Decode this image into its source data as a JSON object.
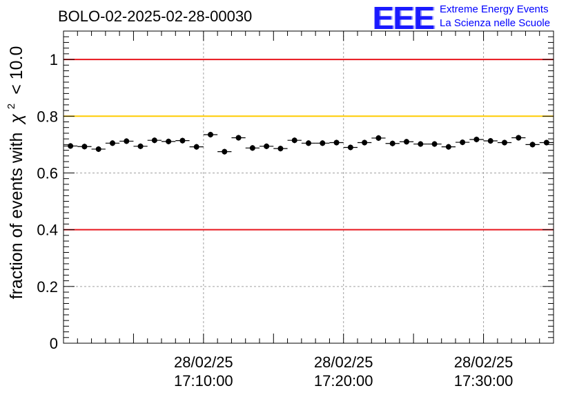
{
  "chart_data": {
    "type": "scatter",
    "title": "BOLO-02-2025-02-28-00030",
    "xlabel": "",
    "ylabel": "fraction of events with",
    "ylabel_symbol": "χ",
    "ylabel_exponent": "2",
    "ylabel_suffix": "< 10.0",
    "ylim": [
      0,
      1.1
    ],
    "yticks": [
      0,
      0.2,
      0.4,
      0.6,
      0.8,
      1.0
    ],
    "ytick_labels": [
      "0",
      "0.2",
      "0.4",
      "0.6",
      "0.8",
      "1"
    ],
    "xlim_minutes": [
      0,
      35
    ],
    "xtick_minutes": [
      10,
      20,
      30
    ],
    "xtick_labels": [
      {
        "date": "28/02/25",
        "time": "17:10:00"
      },
      {
        "date": "28/02/25",
        "time": "17:20:00"
      },
      {
        "date": "28/02/25",
        "time": "17:30:00"
      }
    ],
    "reference_lines": [
      {
        "y": 1.0,
        "color": "#e8141c"
      },
      {
        "y": 0.8,
        "color": "#ffcc00"
      },
      {
        "y": 0.4,
        "color": "#e8141c"
      }
    ],
    "grid": true,
    "series": [
      {
        "name": "fraction",
        "bin_width_minutes": 1,
        "x": [
          0.5,
          1.5,
          2.5,
          3.5,
          4.5,
          5.5,
          6.5,
          7.5,
          8.5,
          9.5,
          10.5,
          11.5,
          12.5,
          13.5,
          14.5,
          15.5,
          16.5,
          17.5,
          18.5,
          19.5,
          20.5,
          21.5,
          22.5,
          23.5,
          24.5,
          25.5,
          26.5,
          27.5,
          28.5,
          29.5,
          30.5,
          31.5,
          32.5,
          33.5,
          34.5
        ],
        "values": [
          0.695,
          0.693,
          0.684,
          0.705,
          0.712,
          0.694,
          0.715,
          0.711,
          0.714,
          0.692,
          0.735,
          0.675,
          0.724,
          0.688,
          0.694,
          0.686,
          0.715,
          0.705,
          0.705,
          0.707,
          0.69,
          0.707,
          0.723,
          0.704,
          0.71,
          0.702,
          0.702,
          0.692,
          0.708,
          0.718,
          0.713,
          0.707,
          0.724,
          0.7,
          0.707
        ],
        "errors": [
          0.01,
          0.01,
          0.01,
          0.01,
          0.01,
          0.01,
          0.01,
          0.01,
          0.01,
          0.01,
          0.01,
          0.01,
          0.01,
          0.01,
          0.01,
          0.01,
          0.01,
          0.01,
          0.01,
          0.01,
          0.01,
          0.01,
          0.01,
          0.01,
          0.01,
          0.01,
          0.01,
          0.01,
          0.01,
          0.01,
          0.01,
          0.01,
          0.01,
          0.01,
          0.01
        ]
      }
    ]
  },
  "logo": {
    "mark": "EEE",
    "line1": "Extreme Energy Events",
    "line2": "La Scienza nelle Scuole"
  }
}
